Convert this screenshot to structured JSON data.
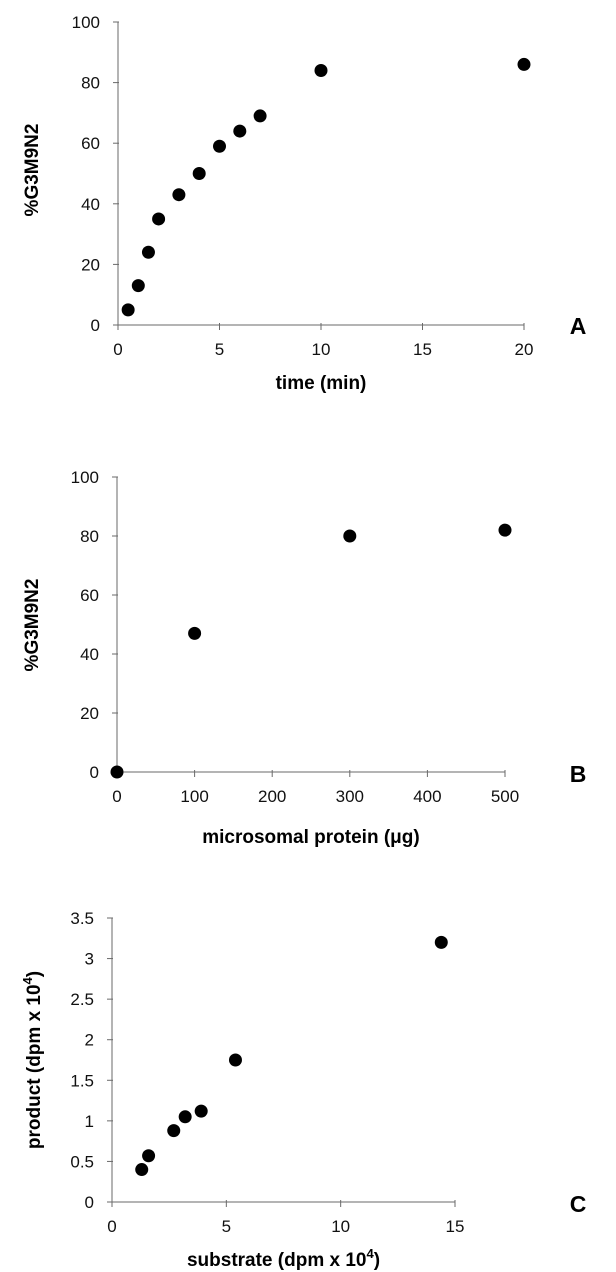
{
  "chart_data": [
    {
      "type": "scatter",
      "panel_label": "A",
      "xlabel": "time (min)",
      "ylabel": "%G3M9N2",
      "xlim": [
        0,
        20
      ],
      "ylim": [
        0,
        100
      ],
      "x_ticks": [
        "0",
        "5",
        "10",
        "15",
        "20"
      ],
      "y_ticks": [
        "0",
        "20",
        "40",
        "60",
        "80",
        "100"
      ],
      "grid": false,
      "legend": "none",
      "marker_color": "#000000",
      "series": [
        {
          "points": [
            {
              "x": 0.5,
              "y": 5
            },
            {
              "x": 1,
              "y": 13
            },
            {
              "x": 1.5,
              "y": 24
            },
            {
              "x": 2,
              "y": 35
            },
            {
              "x": 3,
              "y": 43
            },
            {
              "x": 4,
              "y": 50
            },
            {
              "x": 5,
              "y": 59
            },
            {
              "x": 6,
              "y": 64
            },
            {
              "x": 7,
              "y": 69
            },
            {
              "x": 10,
              "y": 84
            },
            {
              "x": 20,
              "y": 86
            }
          ]
        }
      ]
    },
    {
      "type": "scatter",
      "panel_label": "B",
      "xlabel": "microsomal protein (μg)",
      "ylabel": "%G3M9N2",
      "xlim": [
        0,
        500
      ],
      "ylim": [
        0,
        100
      ],
      "x_ticks": [
        "0",
        "100",
        "200",
        "300",
        "400",
        "500"
      ],
      "y_ticks": [
        "0",
        "20",
        "40",
        "60",
        "80",
        "100"
      ],
      "grid": false,
      "legend": "none",
      "marker_color": "#000000",
      "series": [
        {
          "points": [
            {
              "x": 0,
              "y": 0
            },
            {
              "x": 100,
              "y": 47
            },
            {
              "x": 300,
              "y": 80
            },
            {
              "x": 500,
              "y": 82
            }
          ]
        }
      ]
    },
    {
      "type": "scatter",
      "panel_label": "C",
      "xlabel": "substrate (dpm x 10",
      "xlabel_superscript": "4",
      "xlabel_suffix": ")",
      "ylabel": "product (dpm x 10",
      "ylabel_superscript": "4",
      "ylabel_suffix": ")",
      "xlim": [
        0,
        15
      ],
      "ylim": [
        0,
        3.5
      ],
      "x_ticks": [
        "0",
        "5",
        "10",
        "15"
      ],
      "y_ticks": [
        "0",
        "0.5",
        "1",
        "1.5",
        "2",
        "2.5",
        "3",
        "3.5"
      ],
      "grid": false,
      "legend": "none",
      "marker_color": "#000000",
      "series": [
        {
          "points": [
            {
              "x": 1.3,
              "y": 0.4
            },
            {
              "x": 1.6,
              "y": 0.57
            },
            {
              "x": 2.7,
              "y": 0.88
            },
            {
              "x": 3.2,
              "y": 1.05
            },
            {
              "x": 3.9,
              "y": 1.12
            },
            {
              "x": 5.4,
              "y": 1.75
            },
            {
              "x": 14.4,
              "y": 3.2
            }
          ]
        }
      ]
    }
  ]
}
